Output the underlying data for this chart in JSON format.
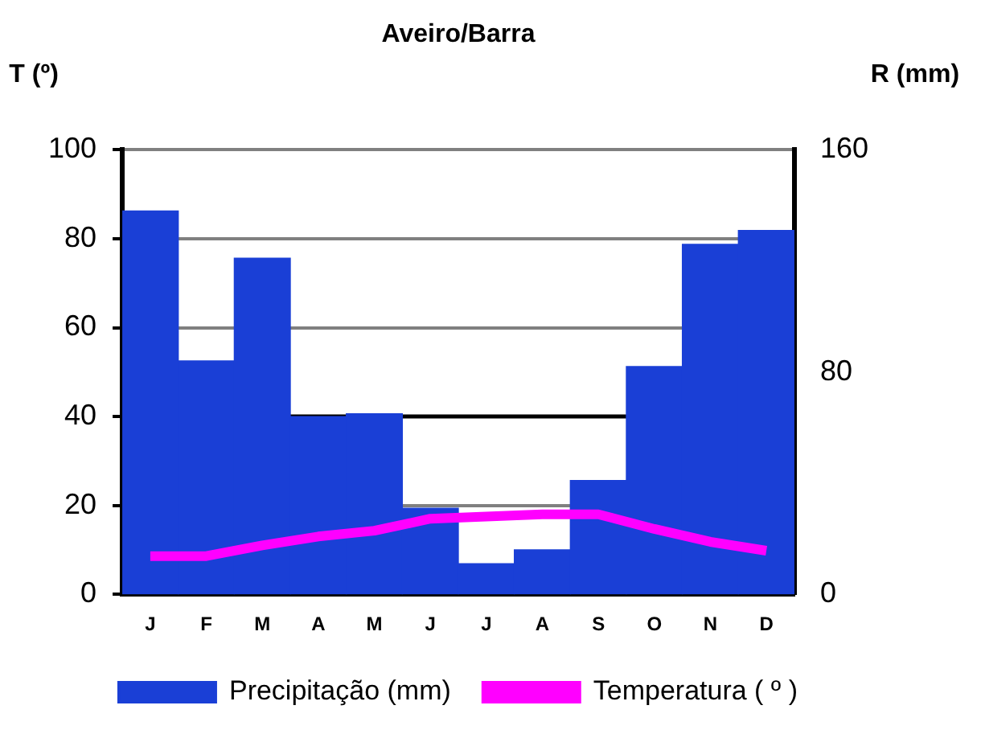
{
  "chart_data": {
    "type": "bar",
    "title": "Aveiro/Barra",
    "ylabel": "T (º)",
    "y2label": "R (mm)",
    "categories": [
      "J",
      "F",
      "M",
      "A",
      "M",
      "J",
      "J",
      "A",
      "S",
      "O",
      "N",
      "D"
    ],
    "series": [
      {
        "name": "Precipitação (mm)",
        "type": "bar",
        "axis": "y2",
        "color": "#1a3fd6",
        "values": [
          138,
          84,
          121,
          64,
          65,
          31,
          11,
          16,
          41,
          82,
          126,
          131
        ]
      },
      {
        "name": "Temperatura ( º )",
        "type": "line",
        "axis": "y",
        "color": "#ff00ff",
        "marker": "none",
        "values": [
          8.6,
          8.6,
          11,
          13,
          14.3,
          17,
          17.5,
          18,
          18,
          14.7,
          11.8,
          9.8
        ]
      }
    ],
    "ylim": [
      0,
      100
    ],
    "yticks": [
      0,
      20,
      40,
      60,
      80,
      100
    ],
    "y2lim": [
      0,
      160
    ],
    "y2ticks": [
      0,
      80,
      160
    ],
    "ref_lines": [
      {
        "axis": "y",
        "value": 40,
        "color": "#000000"
      }
    ],
    "grid": "y",
    "legend": "bottom"
  }
}
